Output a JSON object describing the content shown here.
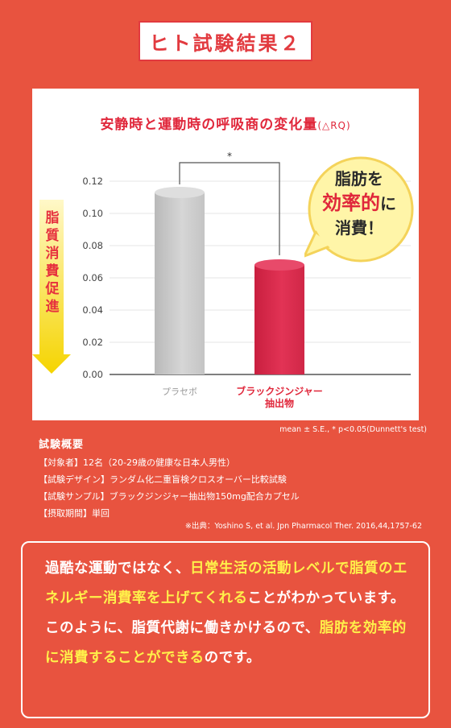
{
  "header": {
    "title": "ヒト試験結果２"
  },
  "chart_data": {
    "type": "bar",
    "title": "安静時と運動時の呼吸商の変化量",
    "title_unit": "(△RQ)",
    "categories": [
      "プラセボ",
      "ブラックジンジャー抽出物"
    ],
    "category_lines": [
      [
        "プラセボ"
      ],
      [
        "ブラックジンジャー",
        "抽出物"
      ]
    ],
    "values": [
      0.113,
      0.068
    ],
    "ylim": [
      0,
      0.12
    ],
    "yticks": [
      "0.00",
      "0.02",
      "0.04",
      "0.06",
      "0.08",
      "0.10",
      "0.12"
    ],
    "significance_mark": "*",
    "bar_colors": [
      "#c6c6c6",
      "#dd2a4a"
    ],
    "gridlines": true
  },
  "side_label": {
    "chars": [
      "脂",
      "質",
      "消",
      "費",
      "促",
      "進"
    ]
  },
  "bubble": {
    "line1": "脂肪を",
    "line2": "効率的",
    "line2_suffix": "に",
    "line3": "消費！"
  },
  "stat_note": "mean ± S.E., * p<0.05(Dunnett's test)",
  "summary": {
    "heading": "試験概要",
    "rows": [
      "【対象者】12名（20-29歳の健康な日本人男性）",
      "【試験デザイン】ランダム化二重盲検クロスオーバー比較試験",
      "【試験サンプル】ブラックジンジャー抽出物150mg配合カプセル",
      "【摂取期間】単回"
    ]
  },
  "source": "※出典：Yoshino S, et al. Jpn Pharmacol Ther. 2016,44,1757-62",
  "callout": {
    "segments": [
      {
        "text": "過酷な運動ではなく、",
        "hl": false
      },
      {
        "text": "日常生活の活動レベルで脂質のエネルギー消費率を上げてくれる",
        "hl": true
      },
      {
        "text": "ことがわかっています。このように、脂質代謝に働きかけるので、",
        "hl": false
      },
      {
        "text": "脂肪を効率的に消費することができる",
        "hl": true
      },
      {
        "text": "のです。",
        "hl": false
      }
    ]
  }
}
